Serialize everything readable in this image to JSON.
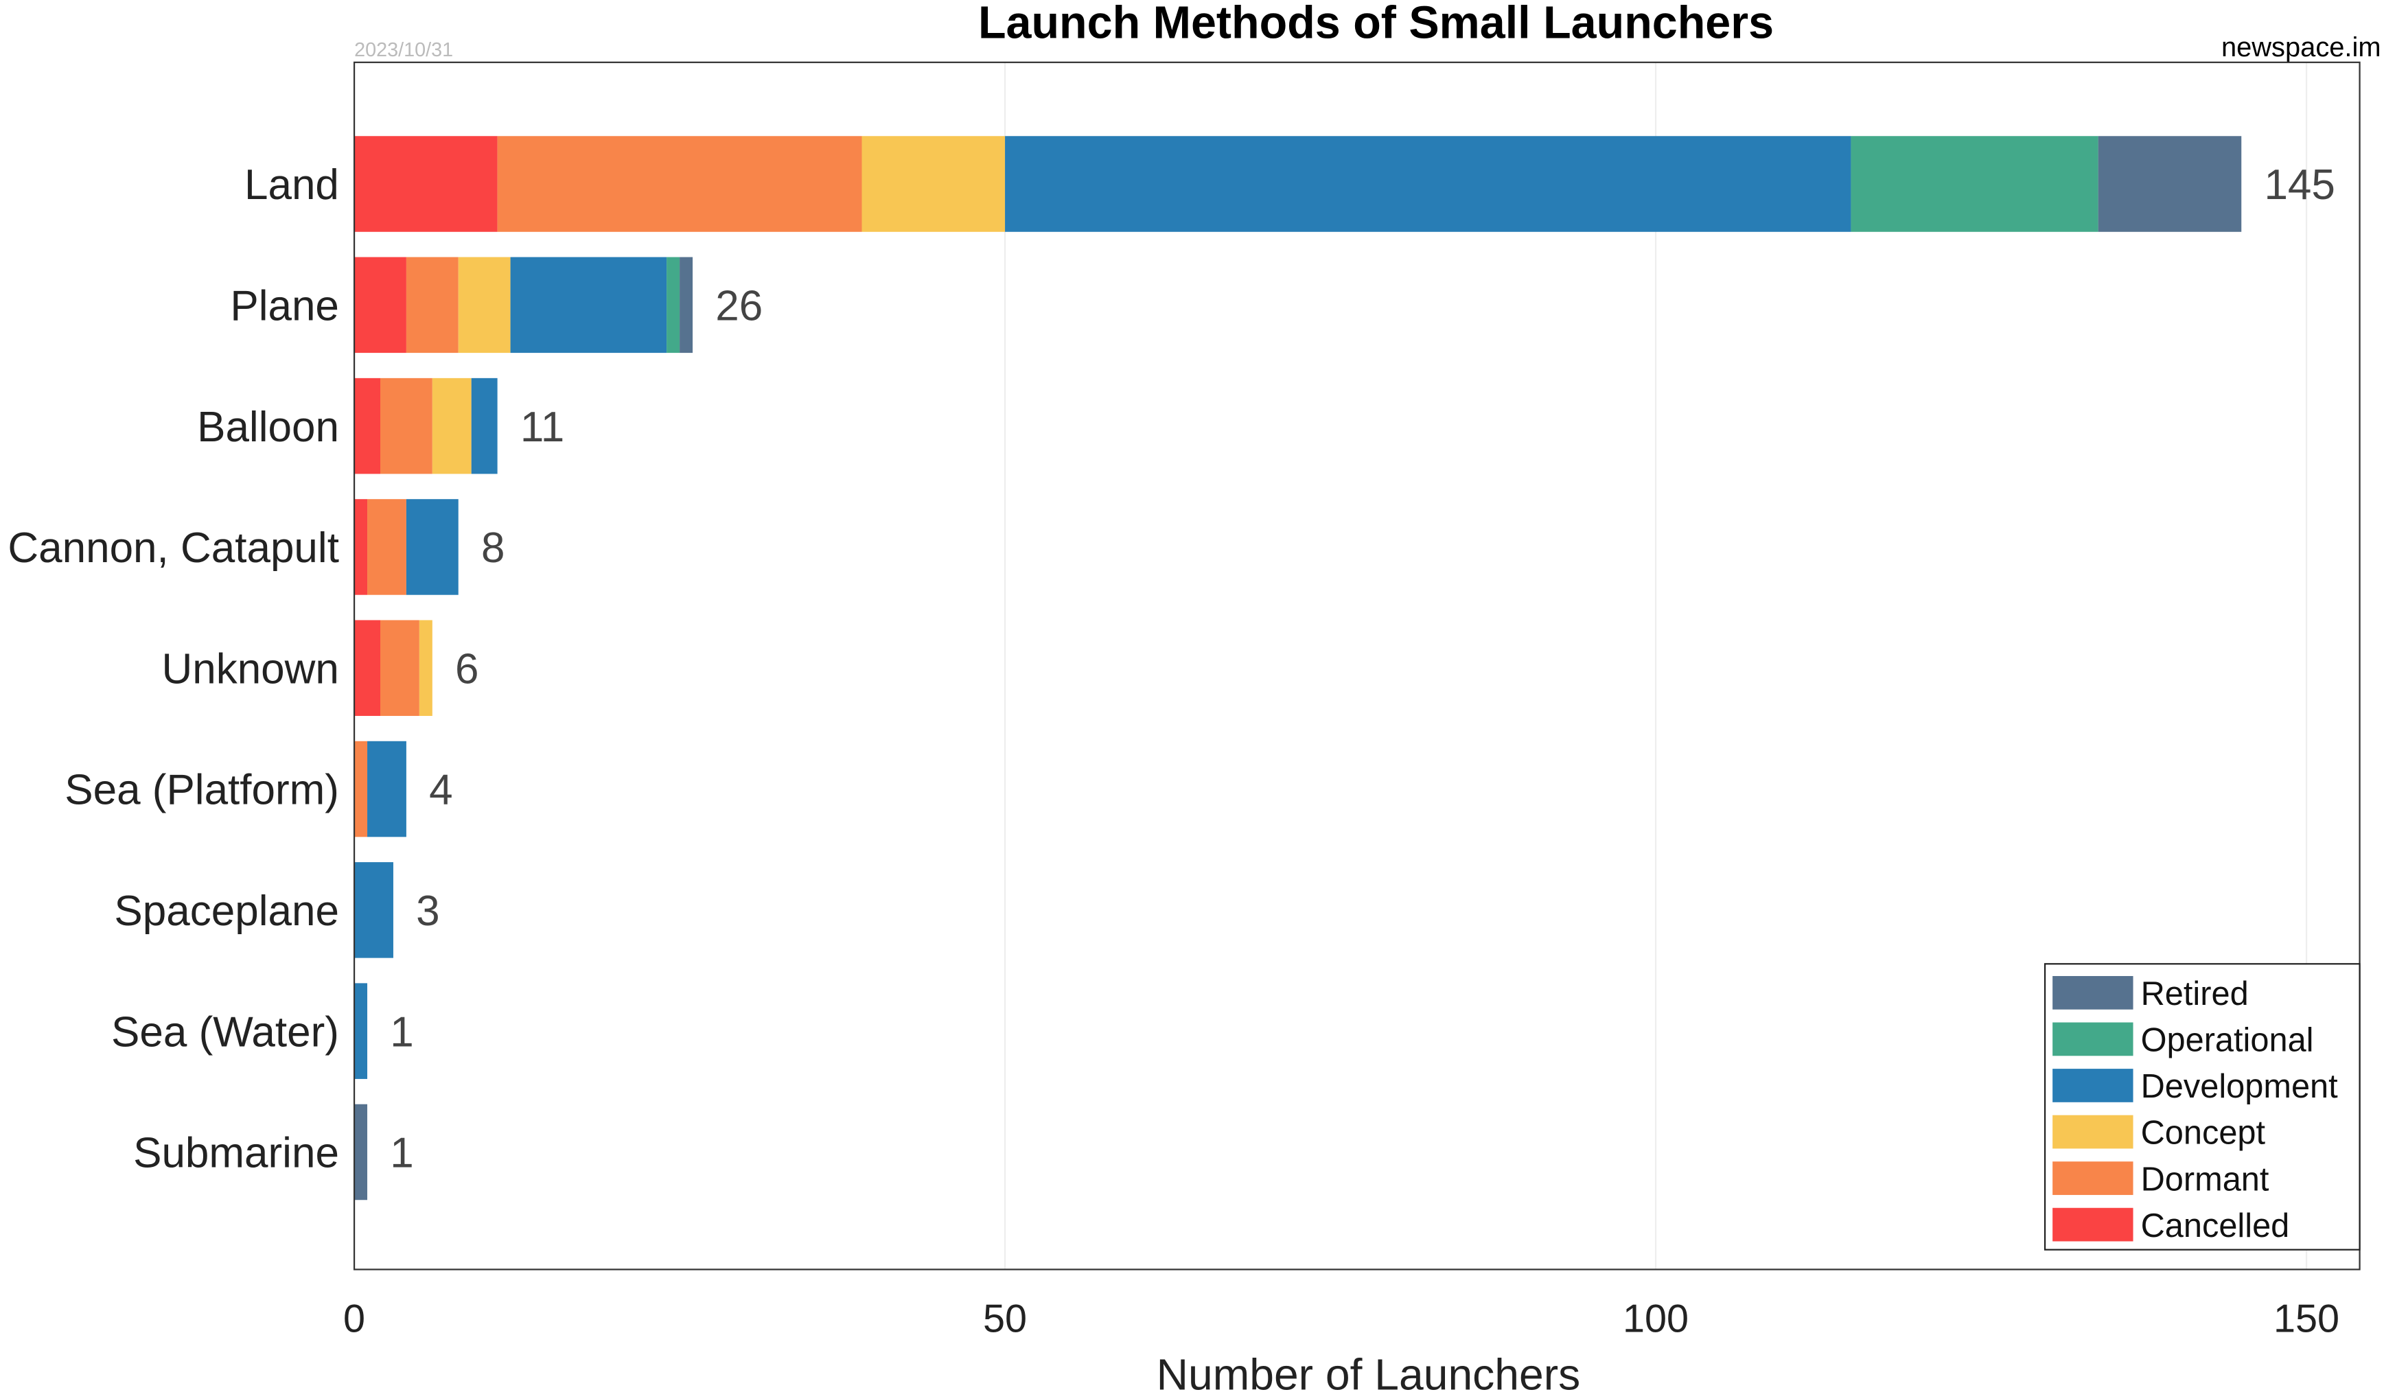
{
  "chart_data": {
    "type": "bar",
    "orientation": "horizontal",
    "stacked": true,
    "title": "Launch Methods of Small Launchers",
    "date": "2023/10/31",
    "source": "newspace.im",
    "xlabel": "Number of Launchers",
    "ylabel": "",
    "xlim": [
      0,
      155
    ],
    "xticks": [
      0,
      50,
      100,
      150
    ],
    "grid": true,
    "legend_position": "bottom-right",
    "categories": [
      "Land",
      "Plane",
      "Balloon",
      "Cannon, Catapult",
      "Unknown",
      "Sea (Platform)",
      "Spaceplane",
      "Sea (Water)",
      "Submarine"
    ],
    "totals": [
      145,
      26,
      11,
      8,
      6,
      4,
      3,
      1,
      1
    ],
    "series": [
      {
        "name": "Cancelled",
        "color": "#fa4343",
        "values": [
          11,
          4,
          2,
          1,
          2,
          0,
          0,
          0,
          0
        ]
      },
      {
        "name": "Dormant",
        "color": "#f8854a",
        "values": [
          28,
          4,
          4,
          3,
          3,
          1,
          0,
          0,
          0
        ]
      },
      {
        "name": "Concept",
        "color": "#f8c653",
        "values": [
          11,
          4,
          3,
          0,
          1,
          0,
          0,
          0,
          0
        ]
      },
      {
        "name": "Development",
        "color": "#287db5",
        "values": [
          65,
          12,
          2,
          4,
          0,
          3,
          3,
          1,
          0
        ]
      },
      {
        "name": "Operational",
        "color": "#43a98a",
        "values": [
          19,
          1,
          0,
          0,
          0,
          0,
          0,
          0,
          0
        ]
      },
      {
        "name": "Retired",
        "color": "#56728f",
        "values": [
          11,
          1,
          0,
          0,
          0,
          0,
          0,
          0,
          1
        ]
      }
    ],
    "legend_order": [
      "Retired",
      "Operational",
      "Development",
      "Concept",
      "Dormant",
      "Cancelled"
    ]
  }
}
